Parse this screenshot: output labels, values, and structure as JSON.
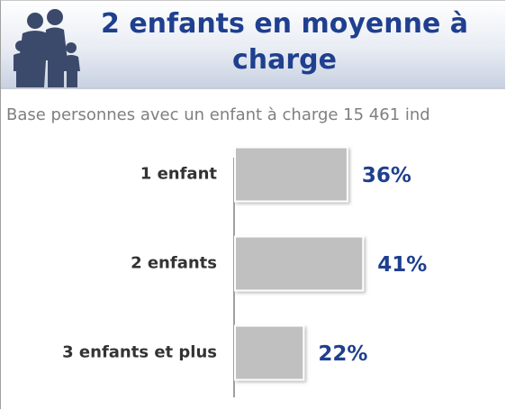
{
  "chart_data": {
    "type": "barh",
    "title": "2 enfants en moyenne à charge",
    "subtitle": "Base personnes avec un enfant à charge 15 461 ind",
    "categories": [
      "1 enfant",
      "2 enfants",
      "3 enfants et plus"
    ],
    "values": [
      36,
      41,
      22
    ],
    "value_labels": [
      "36%",
      "41%",
      "22%"
    ],
    "color": "#c0c0c0"
  }
}
